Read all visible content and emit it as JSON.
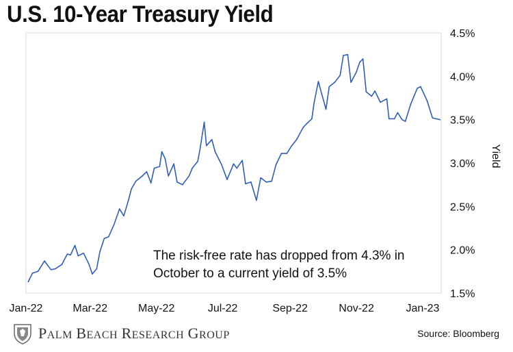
{
  "title": "U.S. 10-Year Treasury Yield",
  "source": "Source: Bloomberg",
  "brand": "Palm Beach Research Group",
  "annotation": {
    "line1": "The risk-free rate has dropped from 4.3% in",
    "line2": "October to a current yield of 3.5%"
  },
  "colors": {
    "line": "#2e5db8",
    "frame": "#d9d9d9",
    "text": "#111111"
  },
  "chart_data": {
    "type": "line",
    "title": "U.S. 10-Year Treasury Yield",
    "xlabel": "",
    "ylabel": "Yield",
    "ylim": [
      1.5,
      4.5
    ],
    "y_ticks": [
      "1.5%",
      "2.0%",
      "2.5%",
      "3.0%",
      "3.5%",
      "4.0%",
      "4.5%"
    ],
    "y_tick_values": [
      1.5,
      2.0,
      2.5,
      3.0,
      3.5,
      4.0,
      4.5
    ],
    "x_ticks": [
      "Jan-22",
      "Mar-22",
      "May-22",
      "Jul-22",
      "Sep-22",
      "Nov-22",
      "Jan-23"
    ],
    "x_tick_dates": [
      "2022-01-01",
      "2022-03-01",
      "2022-05-01",
      "2022-07-01",
      "2022-09-01",
      "2022-11-01",
      "2023-01-01"
    ],
    "y_axis_position": "right",
    "grid": false,
    "legend": "none",
    "series": [
      {
        "x": [
          "2022-01-03",
          "2022-01-07",
          "2022-01-12",
          "2022-01-18",
          "2022-01-24",
          "2022-01-28",
          "2022-02-03",
          "2022-02-08",
          "2022-02-11",
          "2022-02-15",
          "2022-02-18",
          "2022-02-23",
          "2022-02-28",
          "2022-03-03",
          "2022-03-07",
          "2022-03-10",
          "2022-03-14",
          "2022-03-18",
          "2022-03-23",
          "2022-03-28",
          "2022-04-01",
          "2022-04-05",
          "2022-04-08",
          "2022-04-12",
          "2022-04-18",
          "2022-04-22",
          "2022-04-26",
          "2022-04-29",
          "2022-05-04",
          "2022-05-06",
          "2022-05-09",
          "2022-05-12",
          "2022-05-17",
          "2022-05-20",
          "2022-05-25",
          "2022-05-31",
          "2022-06-03",
          "2022-06-08",
          "2022-06-10",
          "2022-06-14",
          "2022-06-16",
          "2022-06-21",
          "2022-06-24",
          "2022-06-30",
          "2022-07-05",
          "2022-07-11",
          "2022-07-14",
          "2022-07-19",
          "2022-07-22",
          "2022-07-27",
          "2022-08-01",
          "2022-08-05",
          "2022-08-10",
          "2022-08-15",
          "2022-08-19",
          "2022-08-24",
          "2022-08-29",
          "2022-09-02",
          "2022-09-07",
          "2022-09-13",
          "2022-09-16",
          "2022-09-21",
          "2022-09-23",
          "2022-09-27",
          "2022-09-30",
          "2022-10-04",
          "2022-10-07",
          "2022-10-12",
          "2022-10-17",
          "2022-10-20",
          "2022-10-24",
          "2022-10-27",
          "2022-11-01",
          "2022-11-04",
          "2022-11-07",
          "2022-11-10",
          "2022-11-15",
          "2022-11-18",
          "2022-11-23",
          "2022-11-29",
          "2022-12-01",
          "2022-12-06",
          "2022-12-09",
          "2022-12-13",
          "2022-12-16",
          "2022-12-21",
          "2022-12-27",
          "2022-12-30",
          "2023-01-05",
          "2023-01-10",
          "2023-01-13",
          "2023-01-17"
        ],
        "values": [
          1.63,
          1.73,
          1.75,
          1.87,
          1.77,
          1.78,
          1.83,
          1.95,
          1.94,
          2.05,
          1.93,
          1.96,
          1.83,
          1.72,
          1.78,
          1.98,
          2.13,
          2.15,
          2.29,
          2.47,
          2.39,
          2.56,
          2.7,
          2.79,
          2.85,
          2.9,
          2.77,
          2.94,
          2.96,
          3.13,
          3.05,
          2.85,
          2.99,
          2.78,
          2.75,
          2.85,
          2.94,
          3.02,
          3.15,
          3.47,
          3.2,
          3.27,
          3.13,
          2.98,
          2.81,
          2.99,
          2.94,
          3.03,
          2.76,
          2.78,
          2.57,
          2.83,
          2.78,
          2.79,
          2.98,
          3.11,
          3.11,
          3.19,
          3.27,
          3.41,
          3.45,
          3.51,
          3.69,
          3.94,
          3.8,
          3.62,
          3.88,
          3.93,
          4.01,
          4.24,
          4.25,
          3.93,
          4.05,
          4.16,
          4.2,
          3.82,
          3.77,
          3.83,
          3.7,
          3.74,
          3.51,
          3.51,
          3.58,
          3.5,
          3.48,
          3.68,
          3.86,
          3.88,
          3.72,
          3.52,
          3.51,
          3.5
        ]
      }
    ]
  }
}
